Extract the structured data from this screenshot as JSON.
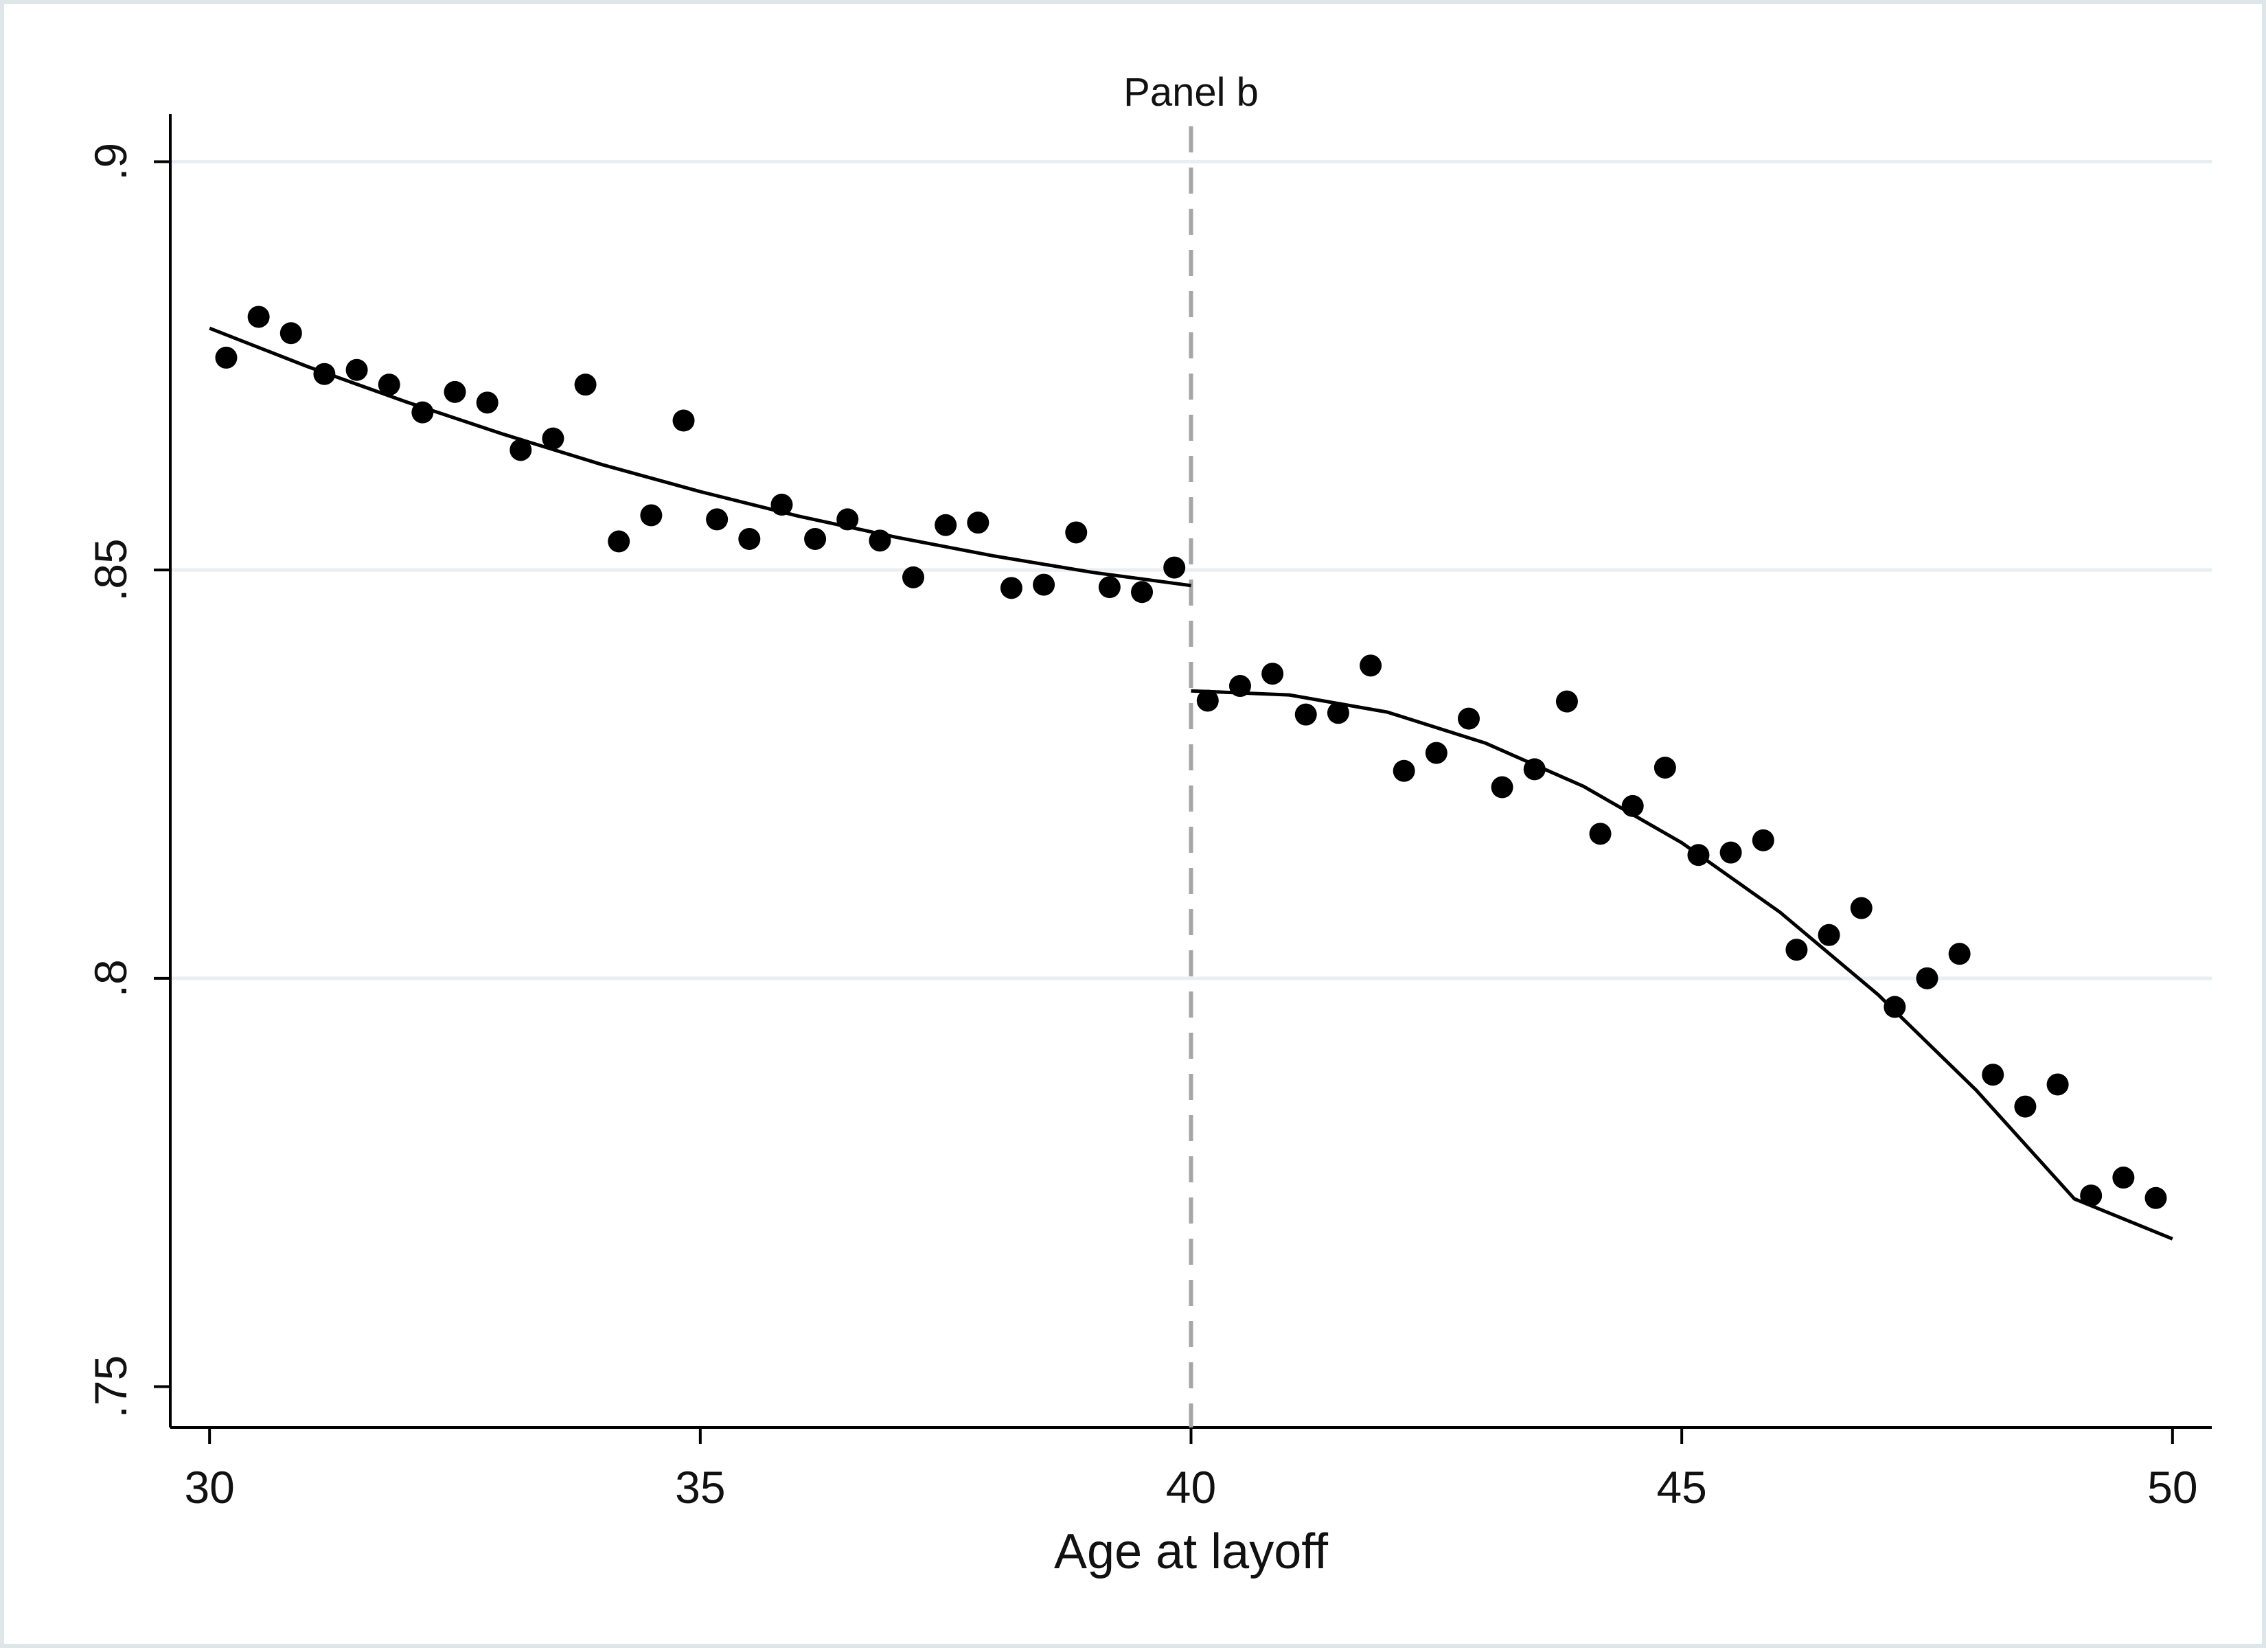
{
  "chart_data": {
    "type": "scatter",
    "title": "Panel b",
    "xlabel": "Age at layoff",
    "ylabel": "",
    "xlim": [
      29.6,
      50.4
    ],
    "ylim": [
      0.745,
      0.905
    ],
    "x_ticks": [
      30,
      35,
      40,
      45,
      50
    ],
    "x_tick_labels": [
      "30",
      "35",
      "40",
      "45",
      "50"
    ],
    "y_ticks": [
      0.75,
      0.8,
      0.85,
      0.9
    ],
    "y_tick_labels": [
      ".75",
      ".8",
      ".85",
      ".9"
    ],
    "grid": "horizontal",
    "cutoff": 40,
    "points": {
      "x": [
        30.17,
        30.5,
        30.83,
        31.17,
        31.5,
        31.83,
        32.17,
        32.5,
        32.83,
        33.17,
        33.5,
        33.83,
        34.17,
        34.5,
        34.83,
        35.17,
        35.5,
        35.83,
        36.17,
        36.5,
        36.83,
        37.17,
        37.5,
        37.83,
        38.17,
        38.5,
        38.83,
        39.17,
        39.5,
        39.83,
        40.17,
        40.5,
        40.83,
        41.17,
        41.5,
        41.83,
        42.17,
        42.5,
        42.83,
        43.17,
        43.5,
        43.83,
        44.17,
        44.5,
        44.83,
        45.17,
        45.5,
        45.83,
        46.17,
        46.5,
        46.83,
        47.17,
        47.5,
        47.83,
        48.17,
        48.5,
        48.83,
        49.17,
        49.5,
        49.83
      ],
      "y": [
        0.876,
        0.881,
        0.879,
        0.874,
        0.8745,
        0.8727,
        0.8693,
        0.8718,
        0.8705,
        0.8647,
        0.8661,
        0.8727,
        0.8535,
        0.8567,
        0.8683,
        0.8562,
        0.8538,
        0.858,
        0.8538,
        0.8562,
        0.8536,
        0.8491,
        0.8555,
        0.8558,
        0.8478,
        0.8482,
        0.8546,
        0.8479,
        0.8473,
        0.8503,
        0.834,
        0.8358,
        0.8373,
        0.8323,
        0.8325,
        0.8383,
        0.8254,
        0.8276,
        0.8318,
        0.8234,
        0.8256,
        0.8339,
        0.8177,
        0.8211,
        0.8258,
        0.8151,
        0.8154,
        0.8169,
        0.8035,
        0.8053,
        0.8086,
        0.7965,
        0.8,
        0.803,
        0.7882,
        0.7843,
        0.787,
        0.7734,
        0.7756,
        0.7731
      ]
    },
    "fit_left": {
      "x": [
        30,
        31,
        32,
        33,
        34,
        35,
        36,
        37,
        38,
        39,
        40
      ],
      "y": [
        0.8796,
        0.8749,
        0.8706,
        0.8666,
        0.8629,
        0.8596,
        0.8566,
        0.854,
        0.8517,
        0.8497,
        0.8481
      ]
    },
    "fit_right": {
      "x": [
        40,
        41,
        42,
        43,
        44,
        45,
        46,
        47,
        48,
        49,
        50
      ],
      "y": [
        0.8352,
        0.8347,
        0.8326,
        0.8288,
        0.8235,
        0.8166,
        0.8081,
        0.798,
        0.7863,
        0.773,
        0.7681
      ]
    },
    "colors": {
      "marker": "#000000",
      "fit": "#000000",
      "cutoff": "#a6a6a6",
      "grid": "#e8eef2"
    }
  }
}
